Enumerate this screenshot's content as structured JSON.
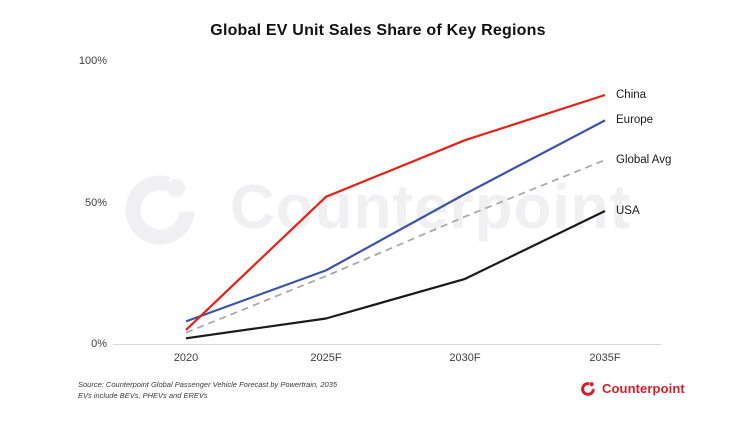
{
  "title": "Global EV Unit Sales Share of Key Regions",
  "chart_data": {
    "type": "line",
    "x": [
      "2020",
      "2025F",
      "2030F",
      "2035F"
    ],
    "series": [
      {
        "name": "China",
        "color": "#e2231a",
        "style": "solid",
        "values": [
          5,
          52,
          72,
          88
        ]
      },
      {
        "name": "Europe",
        "color": "#3b54a5",
        "style": "solid",
        "values": [
          8,
          26,
          53,
          79
        ]
      },
      {
        "name": "Global Avg",
        "color": "#a9a9a9",
        "style": "dashed",
        "values": [
          4,
          24,
          45,
          65
        ]
      },
      {
        "name": "USA",
        "color": "#1a1a1a",
        "style": "solid",
        "values": [
          2,
          9,
          23,
          47
        ]
      }
    ],
    "title": "Global EV Unit Sales Share of Key Regions",
    "xlabel": "",
    "ylabel": "",
    "ylim": [
      0,
      100
    ],
    "y_ticks": [
      "100%",
      "50%",
      "0%"
    ],
    "grid": false,
    "legend_position": "right-of-line-ends"
  },
  "watermark": {
    "text": "Counterpoint"
  },
  "source": {
    "line1": "Source: Counterpoint Global Passenger Vehicle Forecast by Powertrain, 2035",
    "line2": "EVs include BEVs, PHEVs and EREVs"
  },
  "footer": {
    "brand": "Counterpoint"
  },
  "colors": {
    "brand_red": "#cf2030",
    "watermark_gray": "#f0eff1",
    "axis_line": "#d9d9d9"
  }
}
